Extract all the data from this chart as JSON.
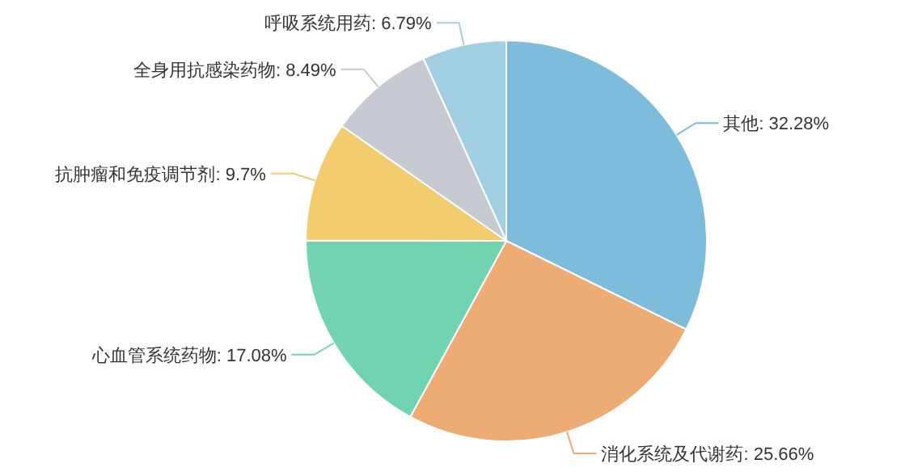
{
  "chart_data": {
    "type": "pie",
    "categories": [
      "其他",
      "消化系统及代谢药",
      "心血管系统药物",
      "抗肿瘤和免疫调节剂",
      "全身用抗感染药物",
      "呼吸系统用药"
    ],
    "values": [
      32.28,
      25.66,
      17.08,
      9.7,
      8.49,
      6.79
    ],
    "value_labels": [
      "32.28%",
      "25.66%",
      "17.08%",
      "9.7%",
      "8.49%",
      "6.79%"
    ],
    "colors": [
      "#7dbddb",
      "#edac74",
      "#72d3b1",
      "#f1cd6f",
      "#c7cbd1",
      "#a3cfe3"
    ]
  }
}
